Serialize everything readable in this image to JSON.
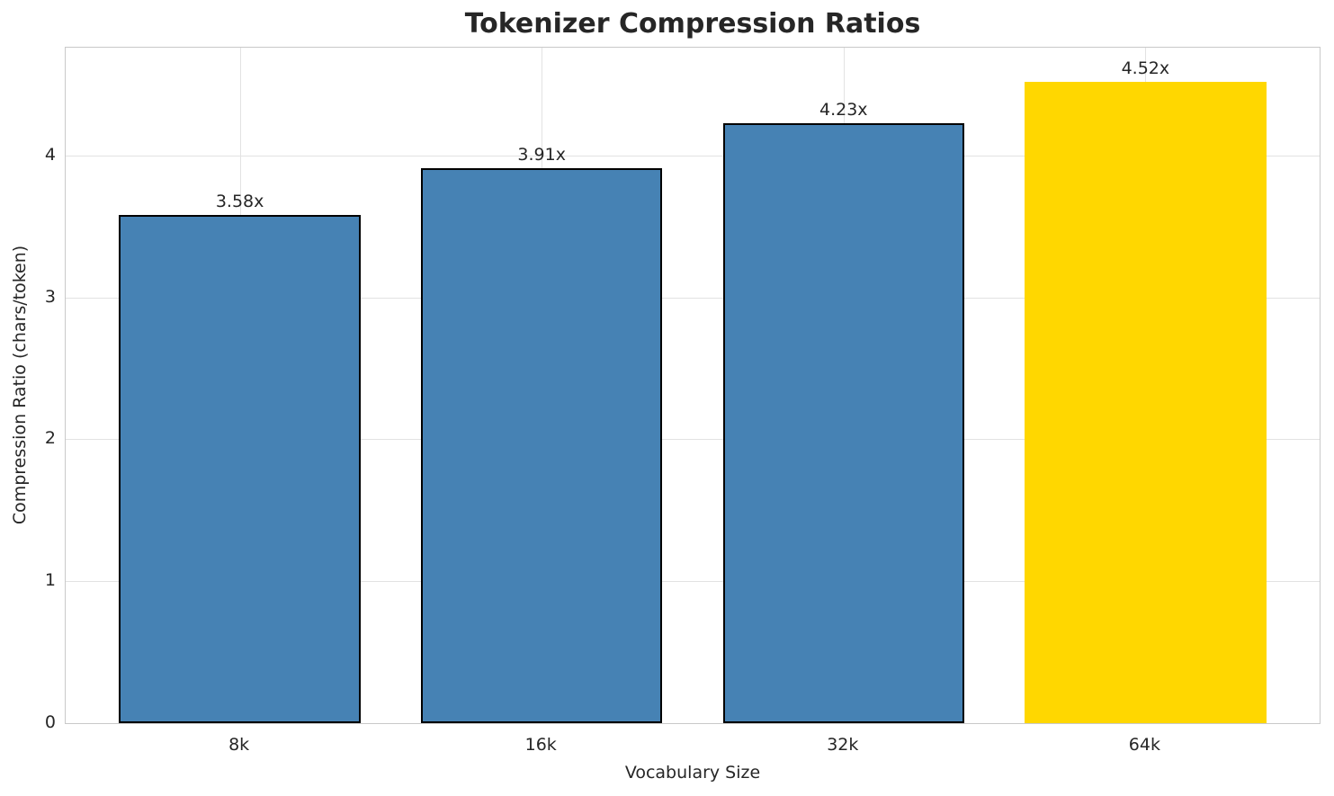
{
  "chart_data": {
    "type": "bar",
    "title": "Tokenizer Compression Ratios",
    "xlabel": "Vocabulary Size",
    "ylabel": "Compression Ratio (chars/token)",
    "categories": [
      "8k",
      "16k",
      "32k",
      "64k"
    ],
    "values": [
      3.58,
      3.91,
      4.23,
      4.52
    ],
    "bar_labels": [
      "3.58x",
      "3.91x",
      "4.23x",
      "4.52x"
    ],
    "bar_colors": [
      "#4682b4",
      "#4682b4",
      "#4682b4",
      "#ffd700"
    ],
    "bar_edge_colors": [
      "#000000",
      "#000000",
      "#000000",
      "none"
    ],
    "highlighted_category": "64k",
    "yticks": [
      0,
      1,
      2,
      3,
      4
    ],
    "ylim": [
      0,
      4.76
    ],
    "grid": true,
    "legend_position": "none",
    "colors": {
      "default_bar": "#4682b4",
      "highlight_bar": "#ffd700",
      "text": "#262626",
      "grid": "#e2e2e2",
      "spine": "#c9c9c9",
      "background": "#ffffff"
    }
  }
}
